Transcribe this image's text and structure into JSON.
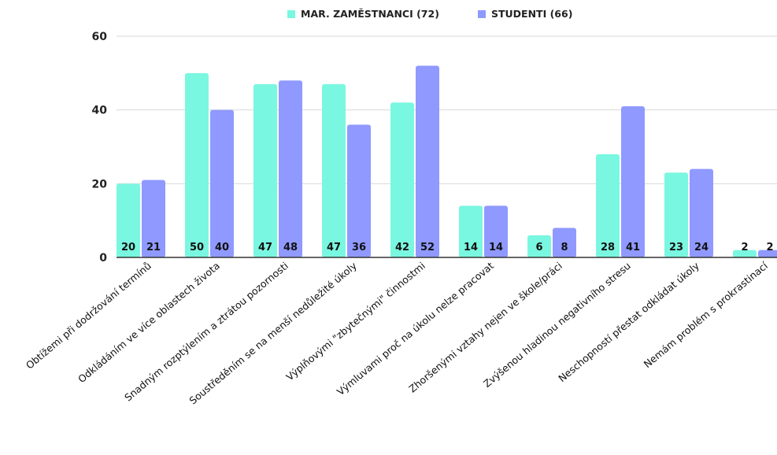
{
  "chart_data": {
    "type": "bar",
    "title": "",
    "xlabel": "",
    "ylabel": "",
    "ylim": [
      0,
      60
    ],
    "yticks": [
      0,
      20,
      40,
      60
    ],
    "grid": true,
    "legend": "top-center",
    "categories": [
      "Obtížemi při dodržování termínů",
      "Odkládáním ve více oblastech života",
      "Snadným rozptýlením a ztrátou pozornosti",
      "Soustředěním se na menší nedůležité úkoly",
      "Výplňovými \"zbytečnými\" činnostmi",
      "Výmluvami proč na úkolu nelze pracovat",
      "Zhoršenými vztahy nejen ve škole/práci",
      "Zvýšenou hladinou negativního stresu",
      "Neschopností přestat odkládat úkoly",
      "Nemám problém s prokrastinací"
    ],
    "series": [
      {
        "name": "MAR. ZAMĚSTNANCI (72)",
        "color": "#7af7e0",
        "values": [
          20,
          50,
          47,
          47,
          42,
          14,
          6,
          28,
          23,
          2
        ]
      },
      {
        "name": "STUDENTI (66)",
        "color": "#8f99ff",
        "values": [
          21,
          40,
          48,
          36,
          52,
          14,
          8,
          41,
          24,
          2
        ]
      }
    ]
  }
}
